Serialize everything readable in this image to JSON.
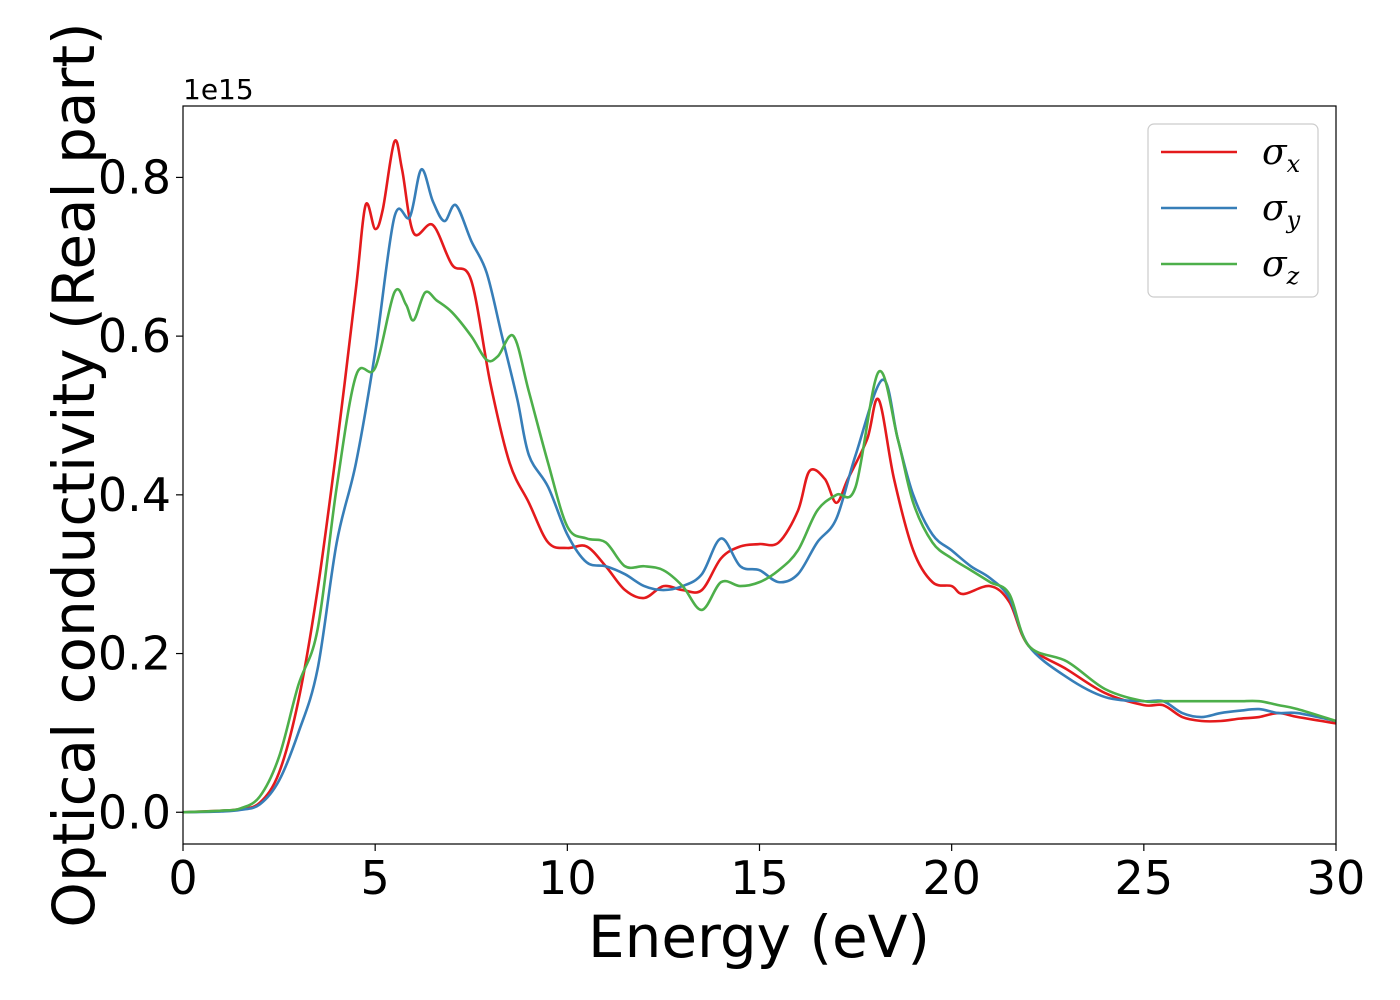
{
  "chart_data": {
    "type": "line",
    "xlabel": "Energy (eV)",
    "ylabel": "Optical conductivity (Real part)",
    "y_offset_label": "1e15",
    "xlim": [
      0,
      30
    ],
    "ylim": [
      -0.04,
      0.89
    ],
    "x_ticks": [
      0,
      5,
      10,
      15,
      20,
      25,
      30
    ],
    "y_ticks": [
      0.0,
      0.2,
      0.4,
      0.6,
      0.8
    ],
    "x_tick_labels": [
      "0",
      "5",
      "10",
      "15",
      "20",
      "25",
      "30"
    ],
    "y_tick_labels": [
      "0.0",
      "0.2",
      "0.4",
      "0.6",
      "0.8"
    ],
    "grid": false,
    "legend_position": "top-right",
    "series": [
      {
        "name": "σx",
        "symbol": "σ",
        "subscript": "x",
        "color": "#e41a1c",
        "points": [
          [
            0,
            0
          ],
          [
            1,
            0.002
          ],
          [
            1.5,
            0.004
          ],
          [
            2,
            0.012
          ],
          [
            2.5,
            0.05
          ],
          [
            3,
            0.14
          ],
          [
            3.5,
            0.28
          ],
          [
            4,
            0.46
          ],
          [
            4.5,
            0.66
          ],
          [
            4.75,
            0.765
          ],
          [
            5.0,
            0.735
          ],
          [
            5.2,
            0.76
          ],
          [
            5.5,
            0.845
          ],
          [
            5.7,
            0.81
          ],
          [
            6.0,
            0.73
          ],
          [
            6.5,
            0.74
          ],
          [
            7.0,
            0.69
          ],
          [
            7.5,
            0.67
          ],
          [
            8.0,
            0.54
          ],
          [
            8.5,
            0.44
          ],
          [
            9.0,
            0.39
          ],
          [
            9.5,
            0.34
          ],
          [
            10.0,
            0.333
          ],
          [
            10.5,
            0.335
          ],
          [
            11.0,
            0.31
          ],
          [
            11.5,
            0.28
          ],
          [
            12.0,
            0.27
          ],
          [
            12.5,
            0.285
          ],
          [
            13.0,
            0.28
          ],
          [
            13.5,
            0.28
          ],
          [
            14.0,
            0.32
          ],
          [
            14.5,
            0.335
          ],
          [
            15.0,
            0.338
          ],
          [
            15.5,
            0.34
          ],
          [
            16.0,
            0.38
          ],
          [
            16.3,
            0.43
          ],
          [
            16.7,
            0.42
          ],
          [
            17.0,
            0.39
          ],
          [
            17.3,
            0.42
          ],
          [
            17.8,
            0.47
          ],
          [
            18.1,
            0.52
          ],
          [
            18.5,
            0.42
          ],
          [
            19.0,
            0.33
          ],
          [
            19.5,
            0.29
          ],
          [
            20.0,
            0.285
          ],
          [
            20.3,
            0.275
          ],
          [
            21.0,
            0.285
          ],
          [
            21.5,
            0.265
          ],
          [
            22.0,
            0.21
          ],
          [
            23.0,
            0.18
          ],
          [
            24.0,
            0.15
          ],
          [
            25.0,
            0.135
          ],
          [
            25.5,
            0.135
          ],
          [
            26.0,
            0.12
          ],
          [
            26.5,
            0.115
          ],
          [
            27.0,
            0.115
          ],
          [
            27.5,
            0.118
          ],
          [
            28.0,
            0.12
          ],
          [
            28.5,
            0.125
          ],
          [
            29.0,
            0.12
          ],
          [
            30.0,
            0.112
          ]
        ]
      },
      {
        "name": "σy",
        "symbol": "σ",
        "subscript": "y",
        "color": "#377eb8",
        "points": [
          [
            0,
            0
          ],
          [
            1,
            0.001
          ],
          [
            1.5,
            0.003
          ],
          [
            2,
            0.01
          ],
          [
            2.5,
            0.04
          ],
          [
            3,
            0.1
          ],
          [
            3.5,
            0.18
          ],
          [
            4,
            0.34
          ],
          [
            4.5,
            0.44
          ],
          [
            5.0,
            0.58
          ],
          [
            5.5,
            0.75
          ],
          [
            5.9,
            0.75
          ],
          [
            6.2,
            0.81
          ],
          [
            6.5,
            0.77
          ],
          [
            6.8,
            0.745
          ],
          [
            7.1,
            0.765
          ],
          [
            7.5,
            0.72
          ],
          [
            7.9,
            0.68
          ],
          [
            8.3,
            0.6
          ],
          [
            8.7,
            0.52
          ],
          [
            9.0,
            0.45
          ],
          [
            9.5,
            0.41
          ],
          [
            10.0,
            0.35
          ],
          [
            10.5,
            0.315
          ],
          [
            11.0,
            0.31
          ],
          [
            11.5,
            0.3
          ],
          [
            12.0,
            0.285
          ],
          [
            12.5,
            0.28
          ],
          [
            13.0,
            0.285
          ],
          [
            13.5,
            0.3
          ],
          [
            14.0,
            0.345
          ],
          [
            14.5,
            0.31
          ],
          [
            15.0,
            0.305
          ],
          [
            15.5,
            0.29
          ],
          [
            16.0,
            0.3
          ],
          [
            16.5,
            0.34
          ],
          [
            17.0,
            0.37
          ],
          [
            17.5,
            0.45
          ],
          [
            18.2,
            0.545
          ],
          [
            18.6,
            0.47
          ],
          [
            19.0,
            0.4
          ],
          [
            19.5,
            0.35
          ],
          [
            20.0,
            0.33
          ],
          [
            20.5,
            0.31
          ],
          [
            21.0,
            0.295
          ],
          [
            21.5,
            0.27
          ],
          [
            22.0,
            0.21
          ],
          [
            23.0,
            0.17
          ],
          [
            24.0,
            0.145
          ],
          [
            25.0,
            0.14
          ],
          [
            25.5,
            0.14
          ],
          [
            26.0,
            0.125
          ],
          [
            26.5,
            0.12
          ],
          [
            27.0,
            0.125
          ],
          [
            27.5,
            0.128
          ],
          [
            28.0,
            0.13
          ],
          [
            28.5,
            0.125
          ],
          [
            29.0,
            0.125
          ],
          [
            30.0,
            0.115
          ]
        ]
      },
      {
        "name": "σz",
        "symbol": "σ",
        "subscript": "z",
        "color": "#4daf4a",
        "points": [
          [
            0,
            0
          ],
          [
            1,
            0.002
          ],
          [
            1.5,
            0.005
          ],
          [
            2,
            0.02
          ],
          [
            2.5,
            0.07
          ],
          [
            3,
            0.16
          ],
          [
            3.5,
            0.23
          ],
          [
            4,
            0.41
          ],
          [
            4.5,
            0.55
          ],
          [
            5.0,
            0.56
          ],
          [
            5.5,
            0.655
          ],
          [
            5.8,
            0.64
          ],
          [
            6.0,
            0.62
          ],
          [
            6.3,
            0.655
          ],
          [
            6.6,
            0.645
          ],
          [
            7.0,
            0.63
          ],
          [
            7.5,
            0.6
          ],
          [
            7.9,
            0.57
          ],
          [
            8.2,
            0.575
          ],
          [
            8.6,
            0.6
          ],
          [
            9.0,
            0.53
          ],
          [
            9.5,
            0.44
          ],
          [
            10.0,
            0.36
          ],
          [
            10.5,
            0.345
          ],
          [
            11.0,
            0.34
          ],
          [
            11.5,
            0.31
          ],
          [
            12.0,
            0.31
          ],
          [
            12.5,
            0.305
          ],
          [
            13.0,
            0.285
          ],
          [
            13.5,
            0.255
          ],
          [
            14.0,
            0.29
          ],
          [
            14.5,
            0.285
          ],
          [
            15.0,
            0.29
          ],
          [
            15.5,
            0.305
          ],
          [
            16.0,
            0.33
          ],
          [
            16.5,
            0.38
          ],
          [
            17.0,
            0.4
          ],
          [
            17.5,
            0.41
          ],
          [
            18.1,
            0.555
          ],
          [
            18.6,
            0.47
          ],
          [
            19.0,
            0.39
          ],
          [
            19.5,
            0.34
          ],
          [
            20.0,
            0.32
          ],
          [
            20.5,
            0.305
          ],
          [
            21.0,
            0.29
          ],
          [
            21.5,
            0.275
          ],
          [
            22.0,
            0.21
          ],
          [
            23.0,
            0.19
          ],
          [
            24.0,
            0.155
          ],
          [
            25.0,
            0.14
          ],
          [
            25.5,
            0.14
          ],
          [
            26.0,
            0.14
          ],
          [
            26.5,
            0.14
          ],
          [
            27.0,
            0.14
          ],
          [
            27.5,
            0.14
          ],
          [
            28.0,
            0.14
          ],
          [
            28.5,
            0.135
          ],
          [
            29.0,
            0.13
          ],
          [
            30.0,
            0.115
          ]
        ]
      }
    ]
  }
}
